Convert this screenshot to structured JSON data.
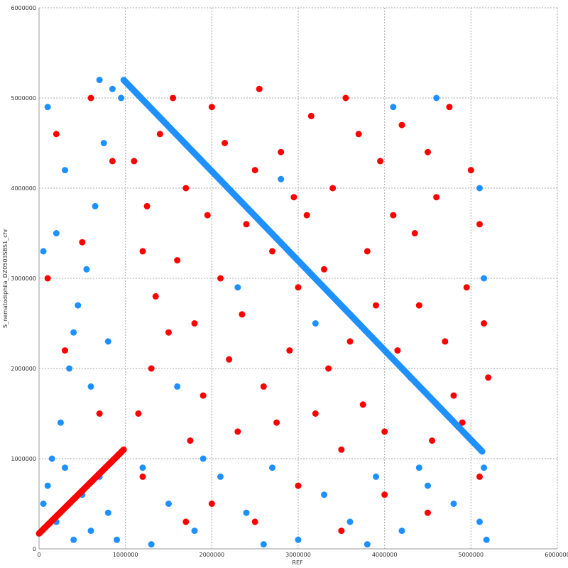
{
  "chart_data": {
    "type": "scatter",
    "xlabel": "REF",
    "ylabel": "S_nematodiphila_DZ0503SBS1_chr",
    "xlim": [
      0,
      6000000
    ],
    "xticks": [
      0,
      1000000,
      2000000,
      3000000,
      4000000,
      5000000,
      6000000
    ],
    "ylim": [
      0,
      6000000
    ],
    "yticks": [
      0,
      1000000,
      2000000,
      3000000,
      4000000,
      5000000,
      6000000
    ],
    "grid": true,
    "series": [
      {
        "color": "#ff0000",
        "x": [
          1100000,
          1250000,
          1400000,
          1600000,
          1800000,
          2000000,
          2200000,
          2400000,
          2600000,
          2800000,
          3000000,
          3200000,
          3400000,
          3600000,
          3800000,
          4000000,
          4200000,
          4400000,
          4600000,
          4800000,
          5000000,
          5150000,
          1150000,
          1350000,
          1550000,
          1750000,
          1950000,
          2150000,
          2350000,
          2550000,
          2750000,
          2950000,
          3150000,
          3350000,
          3550000,
          3750000,
          3950000,
          4150000,
          4350000,
          4550000,
          4750000,
          4950000,
          5100000,
          1300000,
          1700000,
          2100000,
          2500000,
          2900000,
          3300000,
          3700000,
          4100000,
          4500000,
          4900000,
          1200000,
          1900000,
          2700000,
          3500000,
          4300000,
          5200000,
          2300000,
          3100000,
          3900000,
          4700000,
          1500000,
          2000000,
          2500000,
          3000000,
          3500000,
          4000000,
          4500000,
          1200000,
          1700000,
          5100000,
          300000,
          500000,
          200000,
          700000,
          100000,
          850000,
          600000
        ],
        "values": [
          4300000,
          3800000,
          4600000,
          3200000,
          2500000,
          4900000,
          2100000,
          3600000,
          1800000,
          4400000,
          2900000,
          1500000,
          4000000,
          2300000,
          3300000,
          1300000,
          4700000,
          2700000,
          3900000,
          1700000,
          4200000,
          2500000,
          1500000,
          2800000,
          5000000,
          1200000,
          3700000,
          4500000,
          2600000,
          5100000,
          1400000,
          3900000,
          4800000,
          2000000,
          5000000,
          1600000,
          4300000,
          2200000,
          3500000,
          1200000,
          4900000,
          2900000,
          3600000,
          2000000,
          4000000,
          3000000,
          4200000,
          2200000,
          3100000,
          4600000,
          3700000,
          4400000,
          1400000,
          3300000,
          1700000,
          3300000,
          1100000,
          1900000,
          1900000,
          1300000,
          3700000,
          2700000,
          2300000,
          2400000,
          500000,
          300000,
          700000,
          200000,
          600000,
          400000,
          800000,
          300000,
          800000,
          2200000,
          3400000,
          4600000,
          1500000,
          3000000,
          4300000,
          5000000
        ]
      },
      {
        "color": "#1e90ff",
        "x": [
          100000,
          200000,
          300000,
          400000,
          500000,
          600000,
          700000,
          800000,
          900000,
          50000,
          150000,
          250000,
          350000,
          450000,
          550000,
          650000,
          750000,
          850000,
          100000,
          300000,
          200000,
          400000,
          600000,
          800000,
          50000,
          1200000,
          1500000,
          1800000,
          2100000,
          2400000,
          2700000,
          3000000,
          3300000,
          3600000,
          3900000,
          4200000,
          4500000,
          4800000,
          5100000,
          5150000,
          5180000,
          1300000,
          2600000,
          3800000,
          2300000,
          3200000,
          4100000,
          1600000,
          2800000,
          4600000,
          5100000,
          5150000,
          4400000,
          1900000,
          700000,
          950000
        ],
        "values": [
          700000,
          300000,
          900000,
          100000,
          600000,
          200000,
          800000,
          400000,
          100000,
          500000,
          1000000,
          1400000,
          2000000,
          2700000,
          3100000,
          3800000,
          4500000,
          5100000,
          4900000,
          4200000,
          3500000,
          2400000,
          1800000,
          2300000,
          3300000,
          900000,
          500000,
          200000,
          800000,
          400000,
          900000,
          100000,
          600000,
          300000,
          800000,
          200000,
          700000,
          500000,
          300000,
          900000,
          100000,
          50000,
          50000,
          50000,
          2900000,
          2500000,
          4900000,
          1800000,
          4100000,
          5000000,
          4000000,
          3000000,
          900000,
          1000000,
          5200000,
          5000000
        ]
      }
    ],
    "lines": [
      {
        "color": "#1e90ff",
        "x": [
          980000,
          5130000
        ],
        "values": [
          5200000,
          1080000
        ]
      },
      {
        "color": "#ff0000",
        "x": [
          0,
          980000
        ],
        "values": [
          170000,
          1100000
        ]
      }
    ]
  }
}
